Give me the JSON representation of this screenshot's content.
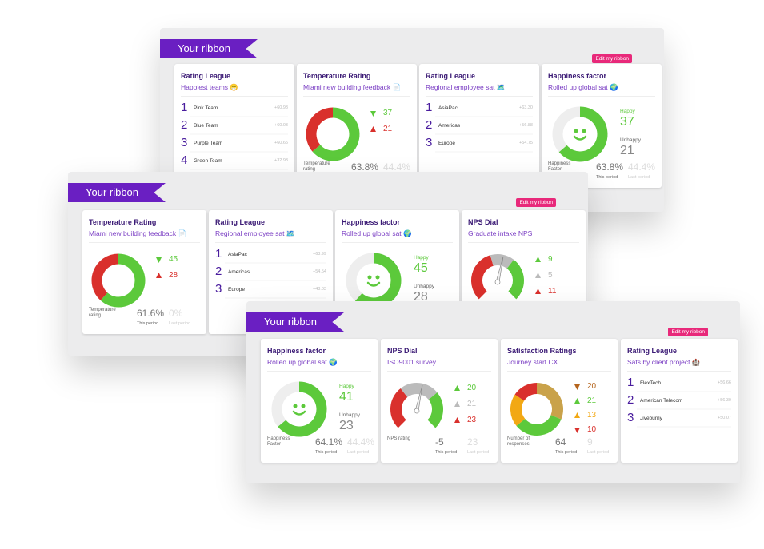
{
  "panels": [
    {
      "ribbon": "Your ribbon",
      "edit": "Edit my ribbon",
      "cards": [
        {
          "type": "league",
          "title": "Rating League",
          "subtitle": "Happiest teams 😁",
          "rows": [
            {
              "rank": 1,
              "name": "Pink Team",
              "score": "+60.93"
            },
            {
              "rank": 2,
              "name": "Blue Team",
              "score": "+60.03"
            },
            {
              "rank": 3,
              "name": "Purple Team",
              "score": "+60.65"
            },
            {
              "rank": 4,
              "name": "Green Team",
              "score": "+32.93"
            }
          ]
        },
        {
          "type": "temperature",
          "title": "Temperature Rating",
          "subtitle": "Miami new building feedback 📄",
          "down": 37,
          "up": 21,
          "label": "Temperature rating",
          "current": "63.8%",
          "previous": "44.4%"
        },
        {
          "type": "league",
          "title": "Rating League",
          "subtitle": "Regional employee sat 🗺️",
          "rows": [
            {
              "rank": 1,
              "name": "AsiaPac",
              "score": "+63.30"
            },
            {
              "rank": 2,
              "name": "Americas",
              "score": "+56.88"
            },
            {
              "rank": 3,
              "name": "Europe",
              "score": "+54.75"
            }
          ]
        },
        {
          "type": "happiness",
          "title": "Happiness factor",
          "subtitle": "Rolled up global sat 🌍",
          "happy_label": "Happy",
          "happy": 37,
          "unhappy_label": "Unhappy",
          "unhappy": 21,
          "label": "Happiness Factor",
          "current": "63.8%",
          "previous": "44.4%",
          "period": "This period",
          "last": "Last period"
        }
      ]
    },
    {
      "ribbon": "Your ribbon",
      "edit": "Edit my ribbon",
      "cards": [
        {
          "type": "temperature",
          "title": "Temperature Rating",
          "subtitle": "Miami new building feedback 📄",
          "down": 45,
          "up": 28,
          "label": "Temperature rating",
          "current": "61.6%",
          "previous": "0%",
          "period": "This period",
          "last": "Last period"
        },
        {
          "type": "league",
          "title": "Rating League",
          "subtitle": "Regional employee sat 🗺️",
          "rows": [
            {
              "rank": 1,
              "name": "AsiaPac",
              "score": "+63.99"
            },
            {
              "rank": 2,
              "name": "Americas",
              "score": "+54.54"
            },
            {
              "rank": 3,
              "name": "Europe",
              "score": "+48.03"
            }
          ]
        },
        {
          "type": "happiness",
          "title": "Happiness factor",
          "subtitle": "Rolled up global sat 🌍",
          "happy_label": "Happy",
          "happy": 45,
          "unhappy_label": "Unhappy",
          "unhappy": 28
        },
        {
          "type": "nps",
          "title": "NPS Dial",
          "subtitle": "Graduate intake NPS",
          "values": [
            9,
            5,
            11
          ]
        }
      ]
    },
    {
      "ribbon": "Your ribbon",
      "edit": "Edit my ribbon",
      "cards": [
        {
          "type": "happiness",
          "title": "Happiness factor",
          "subtitle": "Rolled up global sat 🌍",
          "happy_label": "Happy",
          "happy": 41,
          "unhappy_label": "Unhappy",
          "unhappy": 23,
          "label": "Happiness Factor",
          "current": "64.1%",
          "previous": "44.4%",
          "period": "This period",
          "last": "Last period"
        },
        {
          "type": "nps",
          "title": "NPS Dial",
          "subtitle": "ISO9001 survey",
          "values": [
            20,
            21,
            23
          ],
          "label": "NPS rating",
          "current": -5,
          "previous": 23,
          "period": "This period",
          "last": "Last period"
        },
        {
          "type": "satisfaction",
          "title": "Satisfaction Ratings",
          "subtitle": "Journey start CX",
          "values": [
            20,
            21,
            13,
            10
          ],
          "label": "Number of responses",
          "current": 64,
          "previous": 9,
          "period": "This period",
          "last": "Last period"
        },
        {
          "type": "league",
          "title": "Rating League",
          "subtitle": "Sats by client project 🏰",
          "rows": [
            {
              "rank": 1,
              "name": "FlexTech",
              "score": "+56.66"
            },
            {
              "rank": 2,
              "name": "American Telecom",
              "score": "+56.30"
            },
            {
              "rank": 3,
              "name": "Jiveburny",
              "score": "+50.07"
            }
          ]
        }
      ]
    }
  ]
}
